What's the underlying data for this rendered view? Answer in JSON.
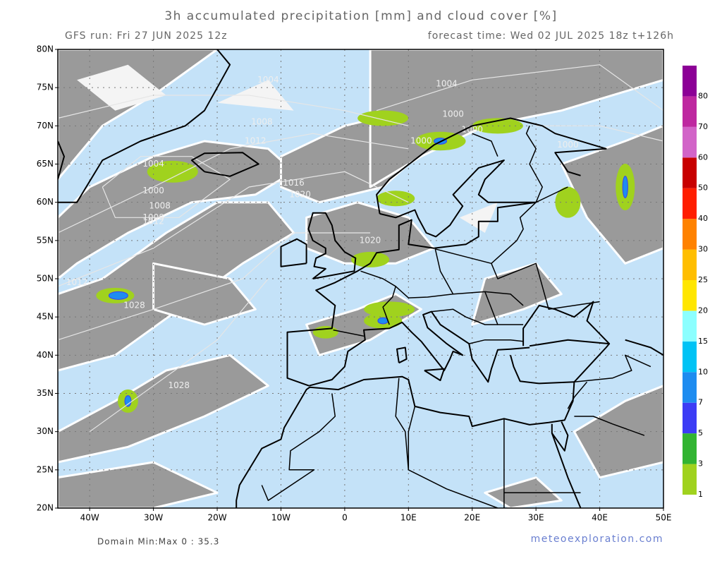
{
  "header": {
    "title": "3h accumulated precipitation [mm] and cloud cover [%]",
    "run": "GFS run: Fri 27 JUN 2025 12z",
    "forecast": "forecast time: Wed 02 JUL 2025 18z  t+126h"
  },
  "map": {
    "lat_labels": [
      "80N",
      "75N",
      "70N",
      "65N",
      "60N",
      "55N",
      "50N",
      "45N",
      "40N",
      "35N",
      "30N",
      "25N",
      "20N"
    ],
    "lon_labels": [
      "40W",
      "30W",
      "20W",
      "10W",
      "0",
      "10E",
      "20E",
      "30E",
      "40E",
      "50E"
    ],
    "isobar_labels": [
      "1004",
      "1008",
      "1004",
      "1000",
      "1000",
      "1008",
      "1012",
      "1004",
      "1000",
      "1008",
      "1012",
      "1012",
      "1028",
      "1028",
      "1016",
      "1020",
      "1020",
      "1000",
      "1000"
    ]
  },
  "legend": {
    "labels": [
      1,
      3,
      5,
      7,
      10,
      15,
      20,
      25,
      30,
      40,
      50,
      60,
      70,
      80
    ],
    "colors": [
      "#a0d21e",
      "#32b432",
      "#3c3cf5",
      "#1e8cf0",
      "#00c3f5",
      "#8cffff",
      "#ffe600",
      "#ffbe00",
      "#ff8200",
      "#ff1e00",
      "#c80000",
      "#d264c8",
      "#be28a0",
      "#8c0096"
    ]
  },
  "footer": {
    "minmax": "Domain Min:Max 0 : 35.3",
    "credit": "meteoexploration.com"
  }
}
